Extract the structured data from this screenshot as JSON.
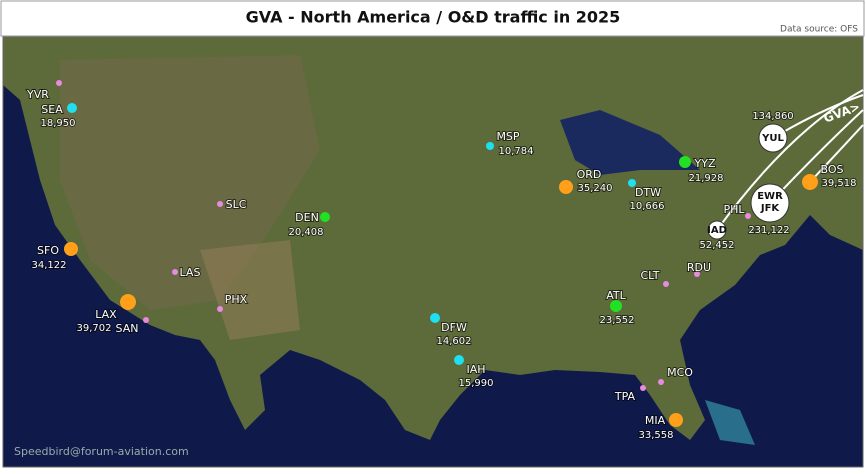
{
  "header": {
    "title": "GVA - North America / O&D traffic in 2025",
    "source": "Data source: OFS"
  },
  "footer": "Speedbird@forum-aviation.com",
  "route_label": "GVA>",
  "airports": [
    {
      "code": "YVR",
      "color": "#e88be0"
    },
    {
      "code": "SEA",
      "traffic": "18,950",
      "color": "#1ee0f0"
    },
    {
      "code": "SFO",
      "traffic": "34,122",
      "color": "#ff9f1a"
    },
    {
      "code": "LAX",
      "traffic": "39,702",
      "color": "#ff9f1a"
    },
    {
      "code": "SAN",
      "color": "#e88be0"
    },
    {
      "code": "LAS",
      "color": "#e88be0"
    },
    {
      "code": "PHX",
      "color": "#e88be0"
    },
    {
      "code": "SLC",
      "color": "#e88be0"
    },
    {
      "code": "DEN",
      "traffic": "20,408",
      "color": "#22e022"
    },
    {
      "code": "MSP",
      "traffic": "10,784",
      "color": "#1ee0f0"
    },
    {
      "code": "DFW",
      "traffic": "14,602",
      "color": "#1ee0f0"
    },
    {
      "code": "IAH",
      "traffic": "15,990",
      "color": "#1ee0f0"
    },
    {
      "code": "ORD",
      "traffic": "35,240",
      "color": "#ff9f1a"
    },
    {
      "code": "DTW",
      "traffic": "10,666",
      "color": "#1ee0f0"
    },
    {
      "code": "YYZ",
      "traffic": "21,928",
      "color": "#22e022"
    },
    {
      "code": "ATL",
      "traffic": "23,552",
      "color": "#22e022"
    },
    {
      "code": "CLT",
      "color": "#e88be0"
    },
    {
      "code": "RDU",
      "color": "#e88be0"
    },
    {
      "code": "MCO",
      "color": "#e88be0"
    },
    {
      "code": "TPA",
      "color": "#e88be0"
    },
    {
      "code": "MIA",
      "traffic": "33,558",
      "color": "#ff9f1a"
    },
    {
      "code": "PHL",
      "color": "#e88be0"
    },
    {
      "code": "IAD",
      "traffic": "52,452",
      "color": "#ffffff"
    },
    {
      "code": "EWR",
      "code2": "JFK",
      "traffic": "231,122",
      "color": "#ffffff"
    },
    {
      "code": "YUL",
      "traffic": "134,860",
      "color": "#ffffff"
    },
    {
      "code": "BOS",
      "traffic": "39,518",
      "color": "#ff9f1a"
    }
  ]
}
